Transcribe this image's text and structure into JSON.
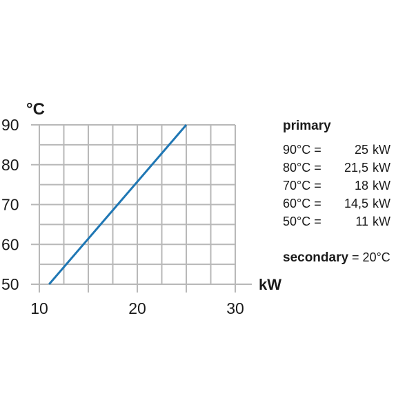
{
  "chart_data": {
    "type": "line",
    "xlabel": "kW",
    "ylabel": "°C",
    "xlim": [
      10,
      30
    ],
    "ylim": [
      50,
      90
    ],
    "x_ticks": [
      "10",
      "20",
      "30"
    ],
    "y_ticks": [
      "50",
      "60",
      "70",
      "80",
      "90"
    ],
    "grid": true,
    "line_color": "#1f77b4",
    "series": [
      {
        "x": [
          11,
          14.5,
          18,
          21.5,
          25
        ],
        "y": [
          50,
          60,
          70,
          80,
          90
        ]
      }
    ]
  },
  "legend": {
    "header": "primary",
    "rows": [
      {
        "temp": "90°C =",
        "value": "25",
        "unit": "kW"
      },
      {
        "temp": "80°C =",
        "value": "21,5",
        "unit": "kW"
      },
      {
        "temp": "70°C =",
        "value": "18",
        "unit": "kW"
      },
      {
        "temp": "60°C =",
        "value": "14,5",
        "unit": "kW"
      },
      {
        "temp": "50°C =",
        "value": "11",
        "unit": "kW"
      }
    ],
    "secondary_label": "secondary",
    "secondary_value": " = 20°C"
  }
}
